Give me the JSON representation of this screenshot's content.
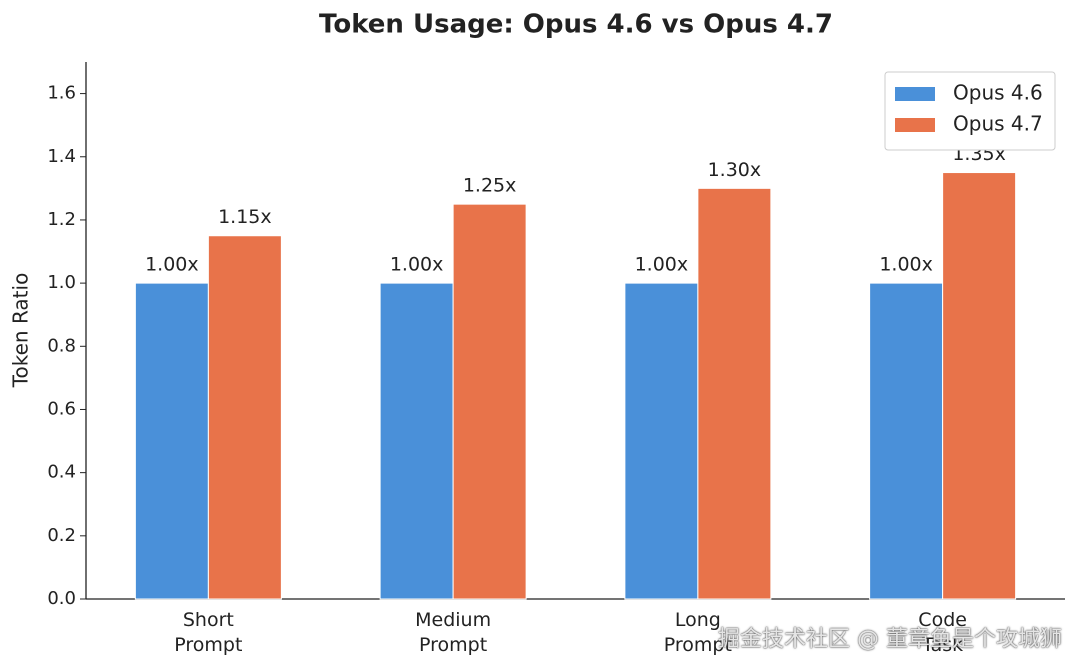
{
  "chart_data": {
    "type": "bar",
    "title": "Token Usage: Opus 4.6 vs Opus 4.7",
    "y_label": "Token Ratio",
    "categories": [
      "Short\nPrompt",
      "Medium\nPrompt",
      "Long\nPrompt",
      "Code\nTask"
    ],
    "series": [
      {
        "name": "Opus 4.6",
        "color": "#4a90d9",
        "values": [
          1.0,
          1.0,
          1.0,
          1.0
        ],
        "value_labels": [
          "1.00x",
          "1.00x",
          "1.00x",
          "1.00x"
        ]
      },
      {
        "name": "Opus 4.7",
        "color": "#e8734a",
        "values": [
          1.15,
          1.25,
          1.3,
          1.35
        ],
        "value_labels": [
          "1.15x",
          "1.25x",
          "1.30x",
          "1.35x"
        ]
      }
    ],
    "ylim": [
      0,
      1.7
    ],
    "yticks": [
      {
        "value": 0,
        "label": "0.0"
      },
      {
        "value": 0.2,
        "label": "0.2"
      },
      {
        "value": 0.4,
        "label": "0.4"
      },
      {
        "value": 0.6,
        "label": "0.6"
      },
      {
        "value": 0.8,
        "label": "0.8"
      },
      {
        "value": 1.0,
        "label": "1.0"
      },
      {
        "value": 1.2,
        "label": "1.2"
      },
      {
        "value": 1.4,
        "label": "1.4"
      },
      {
        "value": 1.6,
        "label": "1.6"
      }
    ],
    "grid": false,
    "legend": "upper right",
    "watermark": "掘金技术社区 @ 董章鱼是个攻城狮"
  }
}
